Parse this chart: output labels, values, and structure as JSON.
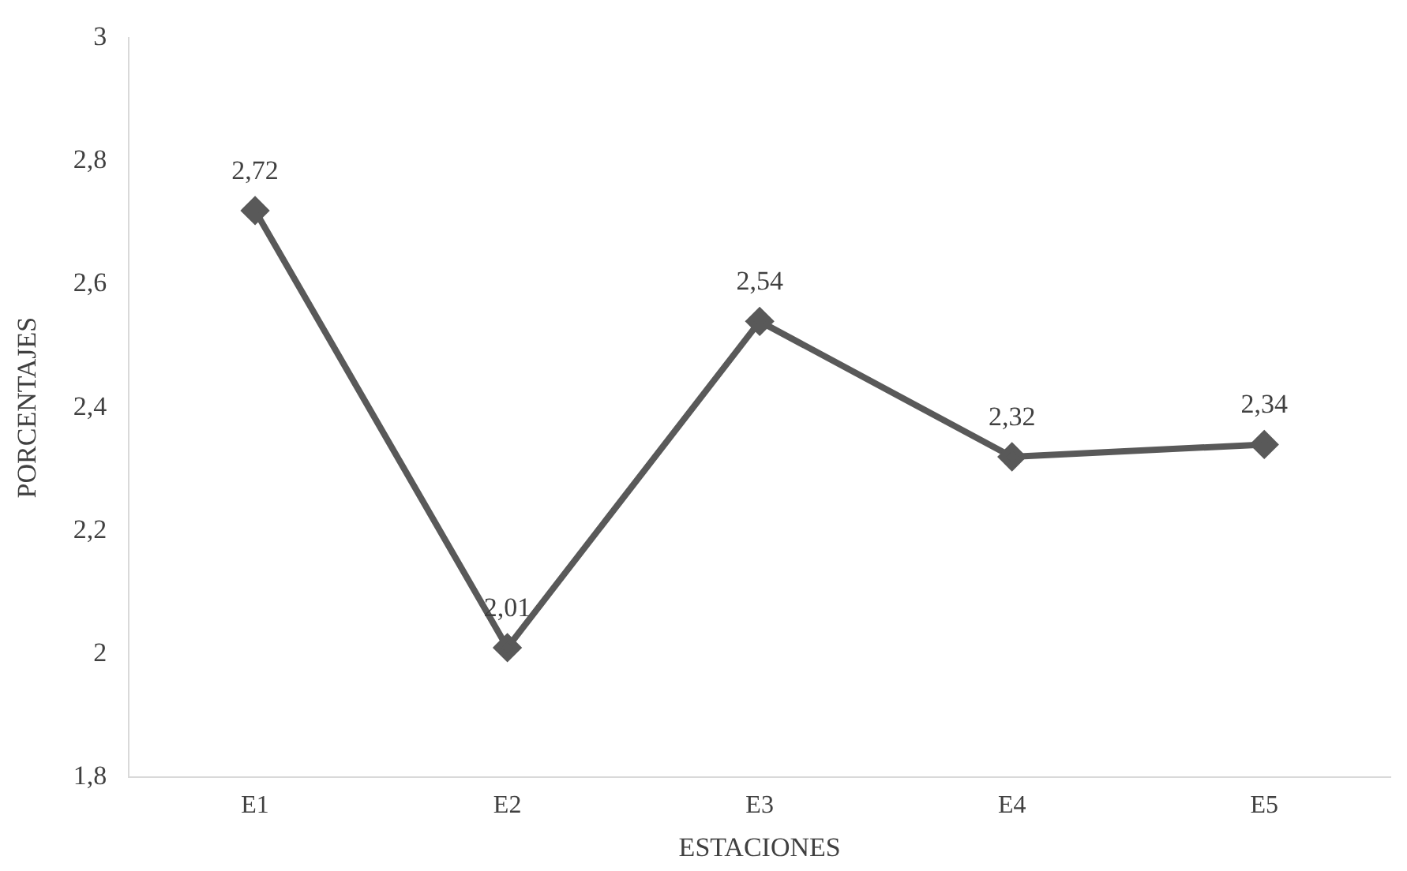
{
  "chart_data": {
    "type": "line",
    "xlabel": "ESTACIONES",
    "ylabel": "PORCENTAJES",
    "categories": [
      "E1",
      "E2",
      "E3",
      "E4",
      "E5"
    ],
    "series": [
      {
        "color": "#595959",
        "values": [
          2.72,
          2.01,
          2.54,
          2.32,
          2.34
        ],
        "value_labels": [
          "2,72",
          "2,01",
          "2,54",
          "2,32",
          "2,34"
        ]
      }
    ],
    "ylim": [
      1.8,
      3
    ],
    "yticks": [
      {
        "value": 1.8,
        "label": "1,8"
      },
      2,
      {
        "value": 2.2,
        "label": "2,2"
      },
      {
        "value": 2.4,
        "label": "2,4"
      },
      {
        "value": 2.6,
        "label": "2,6"
      },
      {
        "value": 2.8,
        "label": "2,8"
      },
      3
    ],
    "grid": false,
    "legend": false,
    "marker": "diamond",
    "line_style": "solid"
  }
}
